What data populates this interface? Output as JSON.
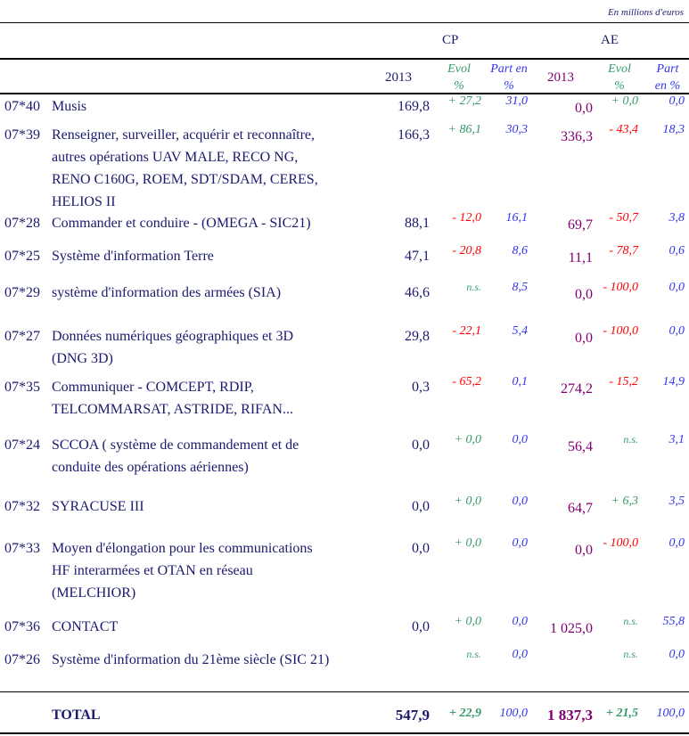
{
  "unit_note": "En millions d'euros",
  "header": {
    "cp": "CP",
    "ae": "AE",
    "cp_year": "2013",
    "cp_evol": [
      "Evol",
      "%"
    ],
    "cp_part": [
      "Part en",
      "%"
    ],
    "ae_year": "2013",
    "ae_evol": [
      "Evol",
      "%"
    ],
    "ae_part": [
      "Part",
      "en %"
    ]
  },
  "colors": {
    "text": "#1a1a6e",
    "positive": "#339966",
    "negative": "#ff0000",
    "part": "#3333ee",
    "ae_value": "#800070"
  },
  "rows": [
    {
      "code": "07*40",
      "label": [
        "Musis"
      ],
      "cp": "169,8",
      "cp_evol": "+ 27,2",
      "cp_part": "31,0",
      "ae": "0,0",
      "ae_evol": "+ 0,0",
      "ae_part": "0,0"
    },
    {
      "code": "07*39",
      "label": [
        "Renseigner, surveiller, acquérir et reconnaître,",
        "autres opérations UAV MALE, RECO NG,",
        "RENO C160G, ROEM, SDT/SDAM, CERES,",
        "HELIOS II"
      ],
      "cp": "166,3",
      "cp_evol": "+ 86,1",
      "cp_part": "30,3",
      "ae": "336,3",
      "ae_evol": "- 43,4",
      "ae_part": "18,3"
    },
    {
      "code": "07*28",
      "label": [
        "Commander et conduire - (OMEGA - SIC21)"
      ],
      "cp": "88,1",
      "cp_evol": "- 12,0",
      "cp_part": "16,1",
      "ae": "69,7",
      "ae_evol": "- 50,7",
      "ae_part": "3,8"
    },
    {
      "code": "07*25",
      "label": [
        "Système d'information Terre"
      ],
      "cp": "47,1",
      "cp_evol": "- 20,8",
      "cp_part": "8,6",
      "ae": "11,1",
      "ae_evol": "- 78,7",
      "ae_part": "0,6"
    },
    {
      "code": "07*29",
      "label": [
        "système d'information des armées (SIA)"
      ],
      "cp": "46,6",
      "cp_evol": "n.s.",
      "cp_part": "8,5",
      "ae": "0,0",
      "ae_evol": "- 100,0",
      "ae_part": "0,0"
    },
    {
      "code": "07*27",
      "label": [
        "Données numériques géographiques et 3D",
        "(DNG 3D)"
      ],
      "cp": "29,8",
      "cp_evol": "- 22,1",
      "cp_part": "5,4",
      "ae": "0,0",
      "ae_evol": "- 100,0",
      "ae_part": "0,0"
    },
    {
      "code": "07*35",
      "label": [
        "Communiquer - COMCEPT, RDIP,",
        "TELCOMMARSAT, ASTRIDE, RIFAN..."
      ],
      "cp": "0,3",
      "cp_evol": "- 65,2",
      "cp_part": "0,1",
      "ae": "274,2",
      "ae_evol": "- 15,2",
      "ae_part": "14,9"
    },
    {
      "code": "07*24",
      "label": [
        "SCCOA ( système de commandement et de",
        "conduite des opérations aériennes)"
      ],
      "cp": "0,0",
      "cp_evol": "+ 0,0",
      "cp_part": "0,0",
      "ae": "56,4",
      "ae_evol": "n.s.",
      "ae_part": "3,1"
    },
    {
      "code": "07*32",
      "label": [
        "SYRACUSE III"
      ],
      "cp": "0,0",
      "cp_evol": "+ 0,0",
      "cp_part": "0,0",
      "ae": "64,7",
      "ae_evol": "+ 6,3",
      "ae_part": "3,5"
    },
    {
      "code": "07*33",
      "label": [
        "Moyen d'élongation pour les communications",
        "HF interarmées et OTAN en réseau",
        "(MELCHIOR)"
      ],
      "cp": "0,0",
      "cp_evol": "+ 0,0",
      "cp_part": "0,0",
      "ae": "0,0",
      "ae_evol": "- 100,0",
      "ae_part": "0,0"
    },
    {
      "code": "07*36",
      "label": [
        "CONTACT"
      ],
      "cp": "0,0",
      "cp_evol": "+ 0,0",
      "cp_part": "0,0",
      "ae": "1 025,0",
      "ae_evol": "n.s.",
      "ae_part": "55,8"
    },
    {
      "code": "07*26",
      "label": [
        "Système d'information du 21ème siècle (SIC 21)"
      ],
      "cp": "",
      "cp_evol": "n.s.",
      "cp_part": "0,0",
      "ae": "",
      "ae_evol": "n.s.",
      "ae_part": "0,0"
    }
  ],
  "total": {
    "label": "TOTAL",
    "cp": "547,9",
    "cp_evol": "+ 22,9",
    "cp_part": "100,0",
    "ae": "1 837,3",
    "ae_evol": "+ 21,5",
    "ae_part": "100,0"
  }
}
